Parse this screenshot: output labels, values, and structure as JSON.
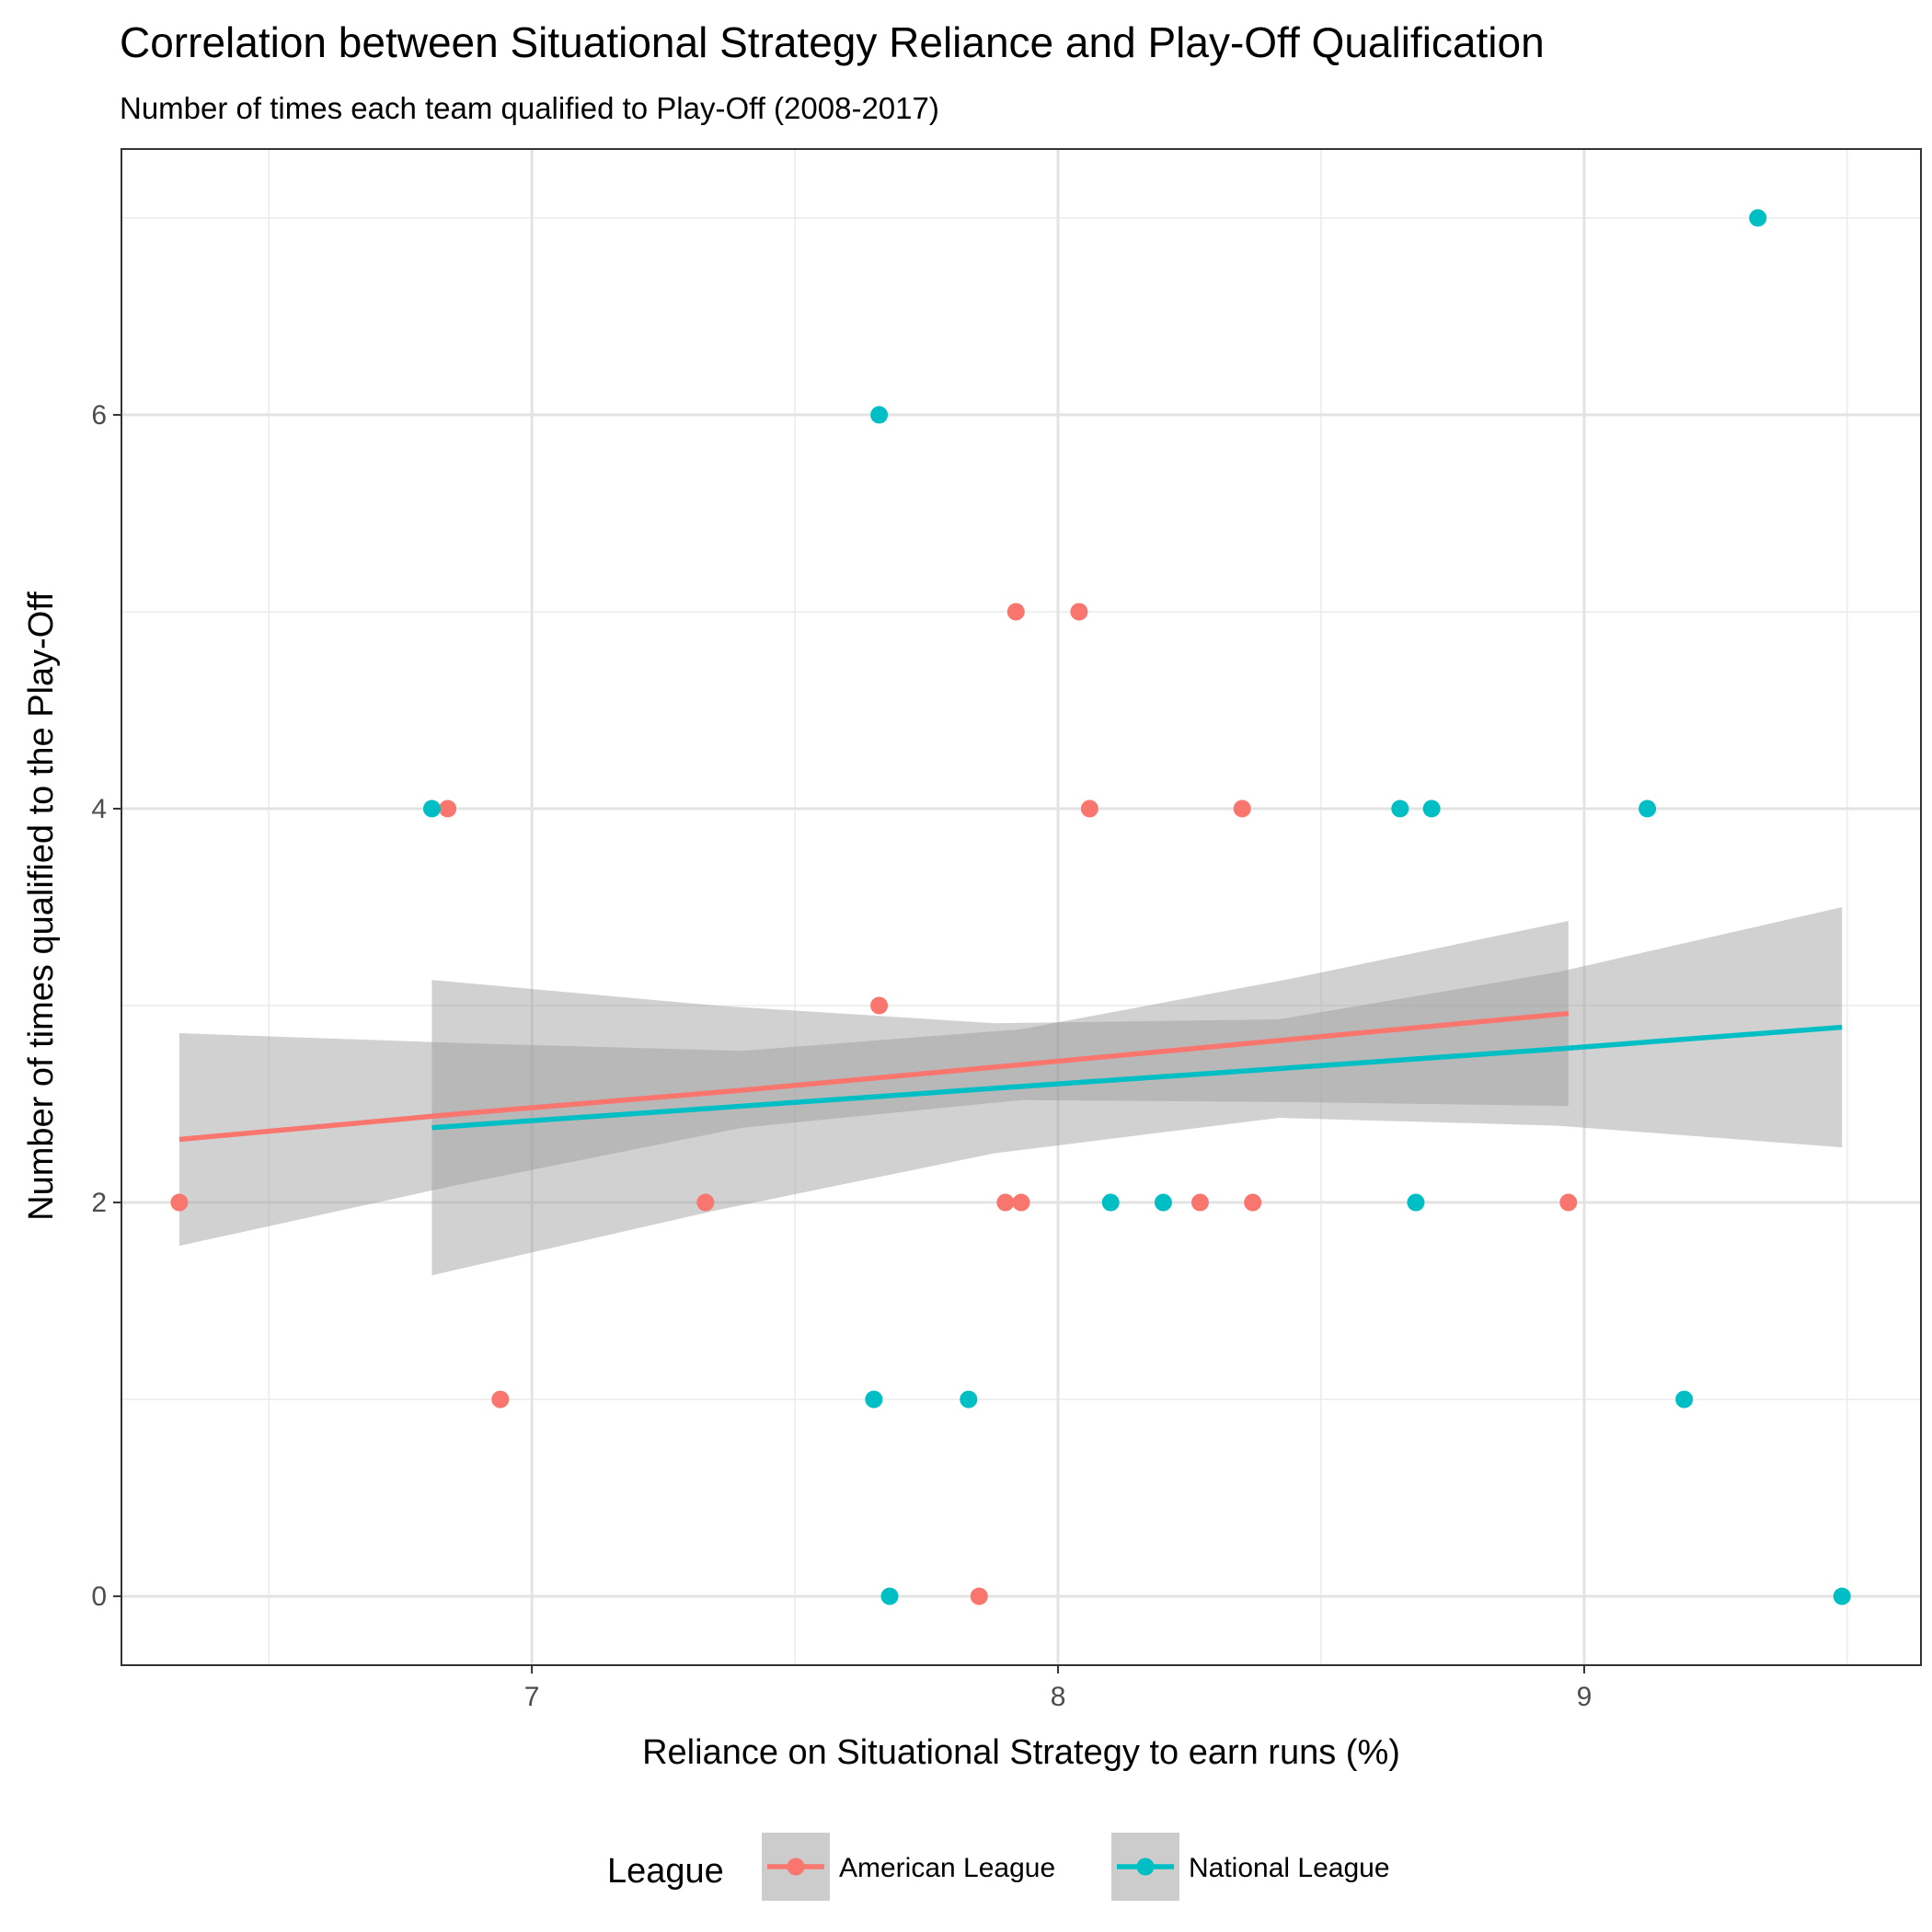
{
  "chart_data": {
    "type": "scatter",
    "title": "Correlation between Situational Strategy Reliance and Play-Off Qualification",
    "subtitle": "Number of times each team qualified to Play-Off (2008-2017)",
    "xlabel": "Reliance on Situational Strategy to earn runs (%)",
    "ylabel": "Number of times qualified to the Play-Off",
    "xlim": [
      6.22,
      9.64
    ],
    "ylim": [
      -0.35,
      7.35
    ],
    "x_ticks": [
      7,
      8,
      9
    ],
    "y_ticks": [
      0,
      2,
      4,
      6
    ],
    "grid": true,
    "legend": {
      "title": "League",
      "position": "bottom"
    },
    "series": [
      {
        "name": "American League",
        "color": "#F8766D",
        "points": [
          {
            "x": 6.33,
            "y": 2
          },
          {
            "x": 6.84,
            "y": 4
          },
          {
            "x": 6.94,
            "y": 1
          },
          {
            "x": 7.33,
            "y": 2
          },
          {
            "x": 7.66,
            "y": 3
          },
          {
            "x": 7.85,
            "y": 0
          },
          {
            "x": 7.9,
            "y": 2
          },
          {
            "x": 7.92,
            "y": 5
          },
          {
            "x": 7.93,
            "y": 2
          },
          {
            "x": 8.04,
            "y": 5
          },
          {
            "x": 8.06,
            "y": 4
          },
          {
            "x": 8.27,
            "y": 2
          },
          {
            "x": 8.35,
            "y": 4
          },
          {
            "x": 8.37,
            "y": 2
          },
          {
            "x": 8.97,
            "y": 2
          }
        ],
        "fit": {
          "x": [
            6.33,
            6.86,
            7.4,
            7.93,
            8.45,
            8.97
          ],
          "y": [
            2.32,
            2.45,
            2.57,
            2.7,
            2.83,
            2.96
          ],
          "lower": [
            1.78,
            2.09,
            2.38,
            2.52,
            2.51,
            2.49
          ],
          "upper": [
            2.86,
            2.81,
            2.77,
            2.88,
            3.14,
            3.43
          ]
        }
      },
      {
        "name": "National League",
        "color": "#00BFC4",
        "points": [
          {
            "x": 6.81,
            "y": 4
          },
          {
            "x": 7.65,
            "y": 1
          },
          {
            "x": 7.66,
            "y": 6
          },
          {
            "x": 7.68,
            "y": 0
          },
          {
            "x": 7.83,
            "y": 1
          },
          {
            "x": 8.1,
            "y": 2
          },
          {
            "x": 8.2,
            "y": 2
          },
          {
            "x": 8.65,
            "y": 4
          },
          {
            "x": 8.68,
            "y": 2
          },
          {
            "x": 8.71,
            "y": 4
          },
          {
            "x": 9.12,
            "y": 4
          },
          {
            "x": 9.19,
            "y": 1
          },
          {
            "x": 9.33,
            "y": 7
          },
          {
            "x": 9.49,
            "y": 0
          }
        ],
        "fit": {
          "x": [
            6.81,
            7.35,
            7.88,
            8.42,
            8.95,
            9.49
          ],
          "y": [
            2.38,
            2.48,
            2.58,
            2.68,
            2.78,
            2.89
          ],
          "lower": [
            1.63,
            1.96,
            2.25,
            2.43,
            2.39,
            2.28
          ],
          "upper": [
            3.13,
            3.0,
            2.91,
            2.93,
            3.17,
            3.5
          ]
        }
      }
    ]
  }
}
